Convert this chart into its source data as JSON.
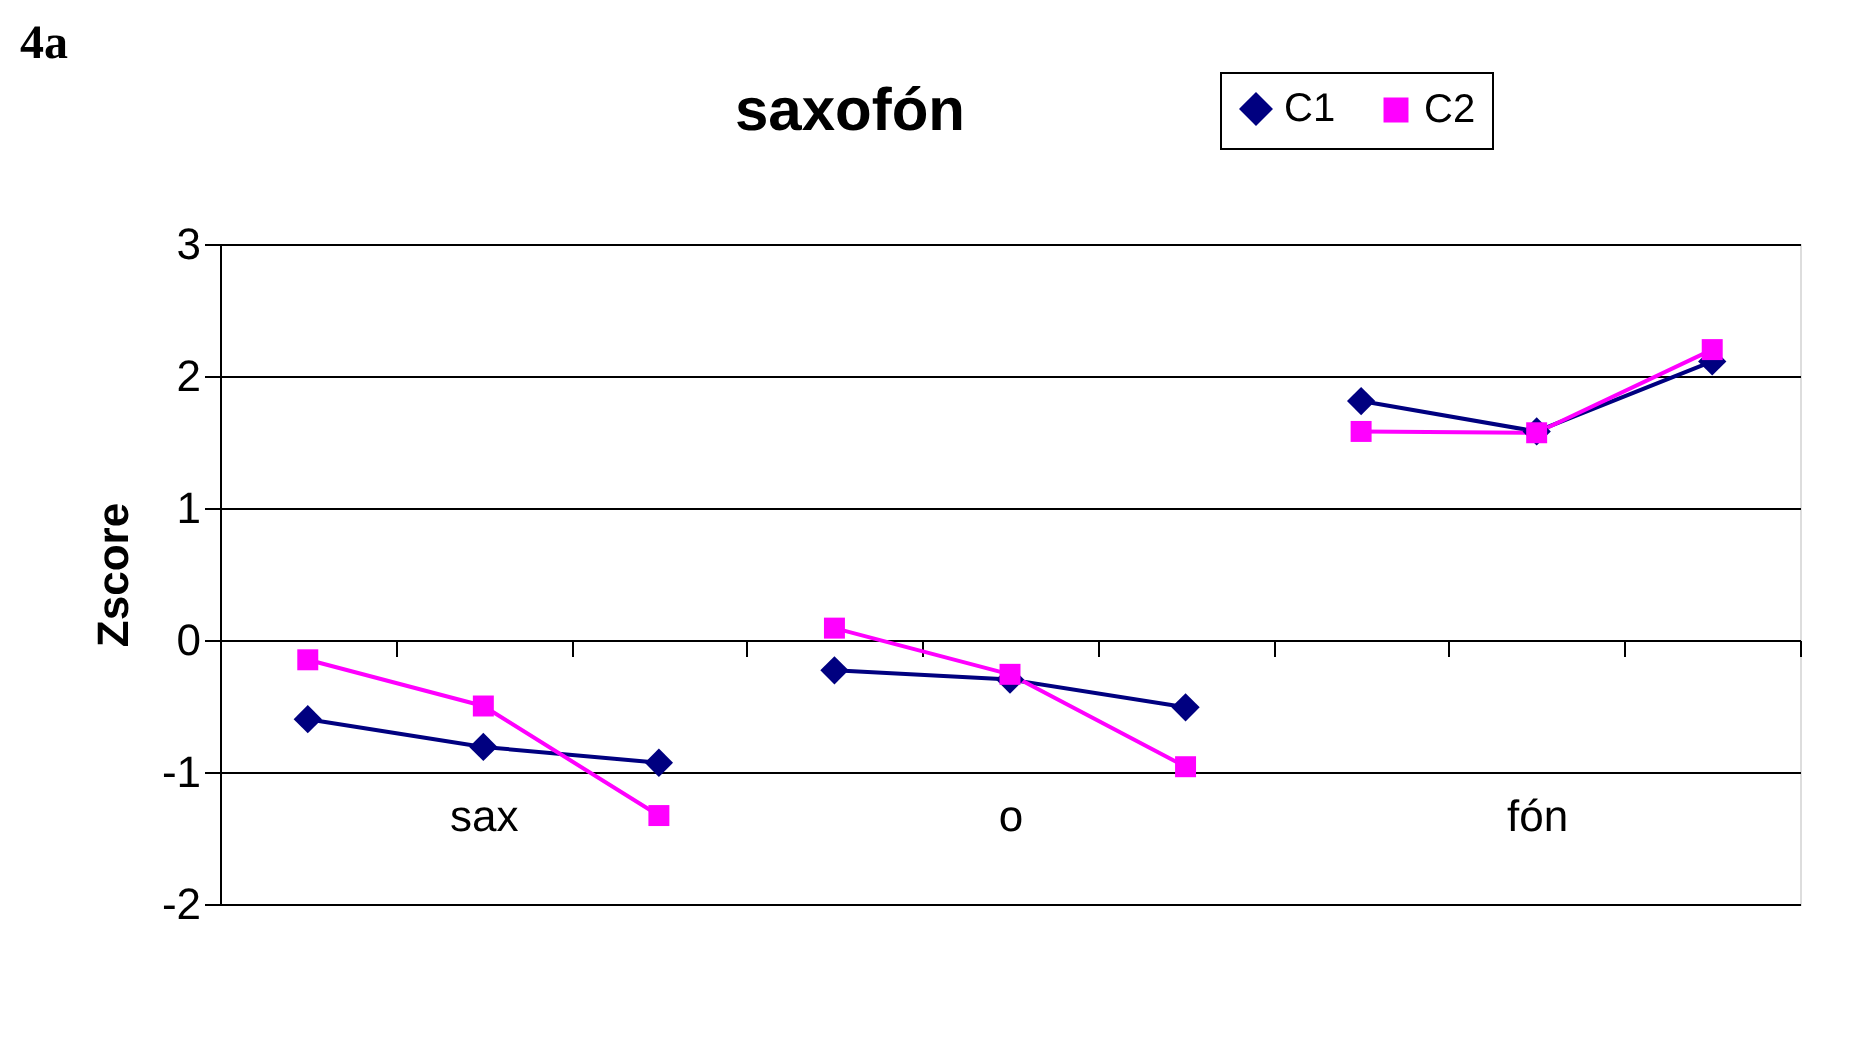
{
  "chart_data": {
    "type": "line",
    "title": "saxofón",
    "ylabel": "Zscore",
    "annotations": [
      "4a"
    ],
    "categories": [
      null,
      "sax",
      null,
      null,
      "o",
      null,
      null,
      "fón",
      null
    ],
    "series": [
      {
        "name": "C1",
        "color": "#000080",
        "marker": "diamond",
        "values": [
          -0.6,
          -0.81,
          -0.93,
          -0.23,
          -0.3,
          -0.51,
          1.81,
          1.58,
          2.11
        ]
      },
      {
        "name": "C2",
        "color": "#ff00ff",
        "marker": "square",
        "values": [
          -0.15,
          -0.5,
          -1.33,
          0.09,
          -0.26,
          -0.96,
          1.58,
          1.57,
          2.2
        ]
      }
    ],
    "ylim": [
      -2,
      3
    ],
    "yticks": [
      -2,
      -1,
      0,
      1,
      2,
      3
    ],
    "grid": "y",
    "legend": "top right",
    "line_style": "solid"
  }
}
